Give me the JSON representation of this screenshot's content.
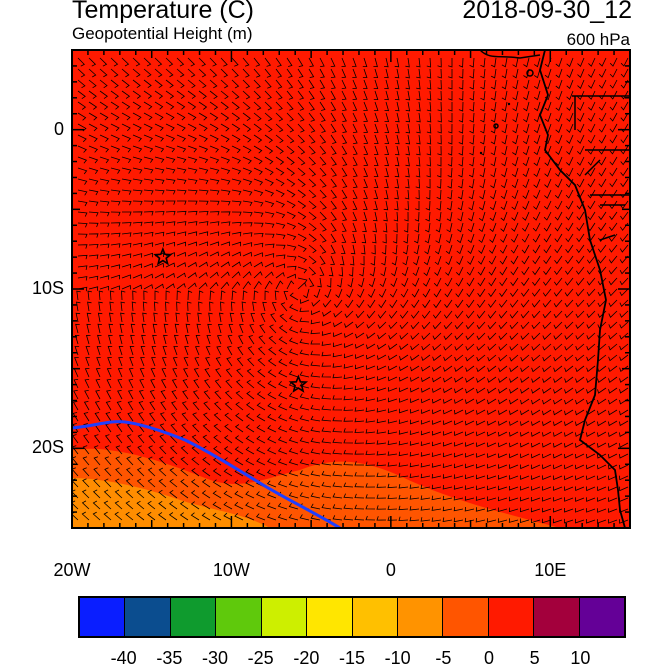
{
  "title": "Temperature (C)",
  "subtitle": "Geopotential Height (m)",
  "datetime": "2018-09-30_12",
  "level": "600 hPa",
  "map": {
    "lon_range": [
      -20,
      15
    ],
    "lat_range": [
      -25,
      5
    ],
    "x_ticks": [
      {
        "value": -20,
        "label": "20W"
      },
      {
        "value": -10,
        "label": "10W"
      },
      {
        "value": 0,
        "label": "0"
      },
      {
        "value": 10,
        "label": "10E"
      }
    ],
    "y_ticks": [
      {
        "value": 0,
        "label": "0"
      },
      {
        "value": -10,
        "label": "10S"
      },
      {
        "value": -20,
        "label": "20S"
      }
    ],
    "background_color": "#ff1a00",
    "contour_color": "#1f3fff",
    "markers": [
      {
        "lon": -14.3,
        "lat": -8,
        "symbol": "star"
      },
      {
        "lon": -5.8,
        "lat": -16,
        "symbol": "star"
      }
    ]
  },
  "colorbar": {
    "colors": [
      "#0a1eff",
      "#0b4d8f",
      "#0f9b2e",
      "#5fc90c",
      "#cdef00",
      "#ffe600",
      "#ffc000",
      "#ff9300",
      "#ff5500",
      "#ff1a00",
      "#a3003c",
      "#640097"
    ],
    "labels": [
      "-40",
      "-35",
      "-30",
      "-25",
      "-20",
      "-15",
      "-10",
      "-5",
      "0",
      "5",
      "10"
    ]
  }
}
